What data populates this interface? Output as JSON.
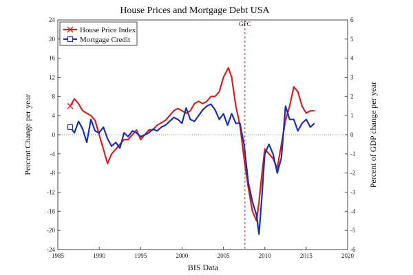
{
  "chart_data": {
    "type": "line",
    "title": "House Prices and Mortgage Debt USA",
    "xlabel": "BIS Data",
    "ylabel": "Percent Change per year",
    "ylabel_right": "Percent of GDP change per year",
    "xlim": [
      1985,
      2020
    ],
    "ylim": [
      -24,
      24
    ],
    "ylim_right": [
      -6,
      6
    ],
    "x_ticks": [
      1985,
      1990,
      1995,
      2000,
      2005,
      2010,
      2015,
      2020
    ],
    "y_ticks": [
      -24,
      -20,
      -16,
      -12,
      -8,
      -4,
      0,
      4,
      8,
      12,
      16,
      20,
      24
    ],
    "y_ticks_right": [
      -6,
      -5,
      -4,
      -3,
      -2,
      -1,
      0,
      1,
      2,
      3,
      4,
      5,
      6
    ],
    "grid": false,
    "legend": "top-left",
    "annotations": [
      {
        "text": "GFC",
        "x": 2007.6
      }
    ],
    "series": [
      {
        "name": "House Price Index",
        "color": "#d42020",
        "marker": "x",
        "axis": "left",
        "x": [
          1986.5,
          1987,
          1987.5,
          1988,
          1988.5,
          1989,
          1989.5,
          1990,
          1990.5,
          1991,
          1991.5,
          1992,
          1992.5,
          1993,
          1993.5,
          1994,
          1994.5,
          1995,
          1995.5,
          1996,
          1996.5,
          1997,
          1997.5,
          1998,
          1998.5,
          1999,
          1999.5,
          2000,
          2000.5,
          2001,
          2001.5,
          2002,
          2002.5,
          2003,
          2003.5,
          2004,
          2004.5,
          2005,
          2005.3,
          2005.6,
          2006,
          2006.5,
          2007,
          2007.5,
          2008,
          2008.5,
          2009,
          2009.3,
          2009.6,
          2010,
          2010.5,
          2011,
          2011.5,
          2012,
          2012.5,
          2013,
          2013.5,
          2014,
          2014.5,
          2015,
          2015.5,
          2016
        ],
        "y": [
          6,
          7.5,
          6.5,
          5,
          4.5,
          4,
          3,
          0,
          -3,
          -6,
          -4,
          -3,
          -2,
          -1,
          -1,
          0,
          1,
          -1,
          0,
          1,
          1,
          2,
          2.5,
          3,
          4,
          5,
          5.5,
          5,
          4.5,
          5,
          6.5,
          7,
          6.5,
          7,
          8,
          8,
          9,
          12,
          13,
          14,
          12,
          6,
          2,
          -5,
          -11,
          -16,
          -18,
          -14,
          -9,
          -3,
          -4,
          -5,
          -7,
          -2,
          3,
          6,
          10,
          9,
          6,
          4.5,
          5,
          5
        ]
      },
      {
        "name": "Mortgage Credit",
        "color": "#1a2fb0",
        "marker": "square",
        "axis": "right",
        "x": [
          1986.5,
          1987,
          1987.5,
          1988,
          1988.5,
          1989,
          1989.5,
          1990,
          1990.5,
          1991,
          1991.5,
          1992,
          1992.5,
          1993,
          1993.5,
          1994,
          1994.5,
          1995,
          1995.5,
          1996,
          1996.5,
          1997,
          1997.5,
          1998,
          1998.5,
          1999,
          1999.5,
          2000,
          2000.5,
          2001,
          2001.5,
          2002,
          2002.5,
          2003,
          2003.5,
          2004,
          2004.5,
          2005,
          2005.5,
          2006,
          2006.5,
          2007,
          2007.5,
          2008,
          2008.5,
          2009,
          2009.3,
          2009.6,
          2010,
          2010.5,
          2011,
          2011.5,
          2012,
          2012.5,
          2013,
          2013.5,
          2014,
          2014.5,
          2015,
          2015.5,
          2016
        ],
        "y": [
          0.4,
          0.1,
          0.7,
          0.3,
          -0.4,
          0.8,
          0.2,
          0.1,
          0.4,
          -0.2,
          -0.6,
          -0.4,
          -0.7,
          0.1,
          -0.1,
          0.2,
          0.1,
          -0.1,
          0.0,
          0.1,
          0.3,
          0.2,
          0.4,
          0.5,
          0.7,
          0.9,
          0.8,
          0.6,
          1.4,
          0.8,
          0.7,
          1.0,
          1.3,
          1.5,
          1.6,
          1.3,
          0.8,
          1.1,
          0.5,
          1.1,
          0.6,
          0.6,
          -0.5,
          -2.5,
          -3.5,
          -4.2,
          -5.2,
          -3.5,
          -1.0,
          -0.5,
          -1.0,
          -2.0,
          -1.2,
          1.5,
          0.8,
          0.8,
          0.2,
          0.6,
          0.8,
          0.4,
          0.6
        ]
      }
    ]
  }
}
